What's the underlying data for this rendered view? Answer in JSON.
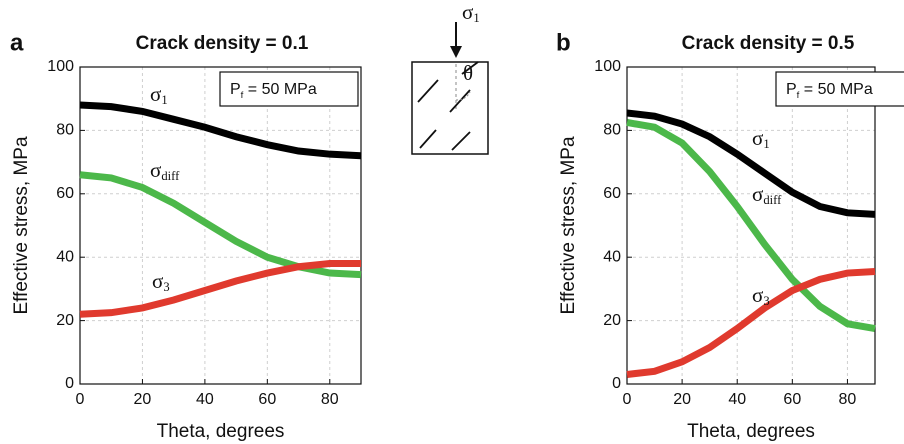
{
  "inset": {
    "load_label": "σ1",
    "angle_label": "θ"
  },
  "chart_data": [
    {
      "type": "line",
      "panel": "a",
      "title": "Crack density = 0.1",
      "annotation": [
        "P",
        "f",
        " = 50 MPa"
      ],
      "x_label": "Theta, degrees",
      "y_label": "Effective stress, MPa",
      "x": [
        0,
        10,
        20,
        30,
        40,
        50,
        60,
        70,
        80,
        90
      ],
      "series": [
        {
          "name": "σ1",
          "color": "#000000",
          "values": [
            88,
            87.5,
            86,
            83.5,
            81,
            78,
            75.5,
            73.5,
            72.5,
            72
          ]
        },
        {
          "name": "σdiff",
          "color": "#4cb84a",
          "values": [
            66,
            65,
            62,
            57,
            51,
            45,
            40,
            37,
            35,
            34.5
          ]
        },
        {
          "name": "σ3",
          "color": "#e03a2e",
          "values": [
            22,
            22.5,
            24,
            26.5,
            29.5,
            32.5,
            35,
            37,
            38,
            38
          ]
        }
      ],
      "xlim": [
        0,
        90
      ],
      "xticks": [
        0,
        20,
        40,
        60,
        80
      ],
      "ylim": [
        0,
        100
      ],
      "yticks": [
        0,
        20,
        40,
        60,
        80,
        100
      ],
      "grid": true
    },
    {
      "type": "line",
      "panel": "b",
      "title": "Crack density = 0.5",
      "annotation": [
        "P",
        "f",
        " = 50 MPa"
      ],
      "x_label": "Theta, degrees",
      "y_label": "Effective stress, MPa",
      "x": [
        0,
        10,
        20,
        30,
        40,
        50,
        60,
        70,
        80,
        90
      ],
      "series": [
        {
          "name": "σ1",
          "color": "#000000",
          "values": [
            85.5,
            84.5,
            82,
            78,
            72.5,
            66.5,
            60.5,
            56,
            54,
            53.5
          ]
        },
        {
          "name": "σdiff",
          "color": "#4cb84a",
          "values": [
            82.5,
            81,
            76,
            67,
            56,
            44,
            33,
            24.5,
            19,
            17.5
          ]
        },
        {
          "name": "σ3",
          "color": "#e03a2e",
          "values": [
            3,
            4,
            7,
            11.5,
            17.5,
            24,
            29.5,
            33,
            35,
            35.5
          ]
        }
      ],
      "xlim": [
        0,
        90
      ],
      "xticks": [
        0,
        20,
        40,
        60,
        80
      ],
      "ylim": [
        0,
        100
      ],
      "yticks": [
        0,
        20,
        40,
        60,
        80,
        100
      ],
      "grid": true
    }
  ]
}
